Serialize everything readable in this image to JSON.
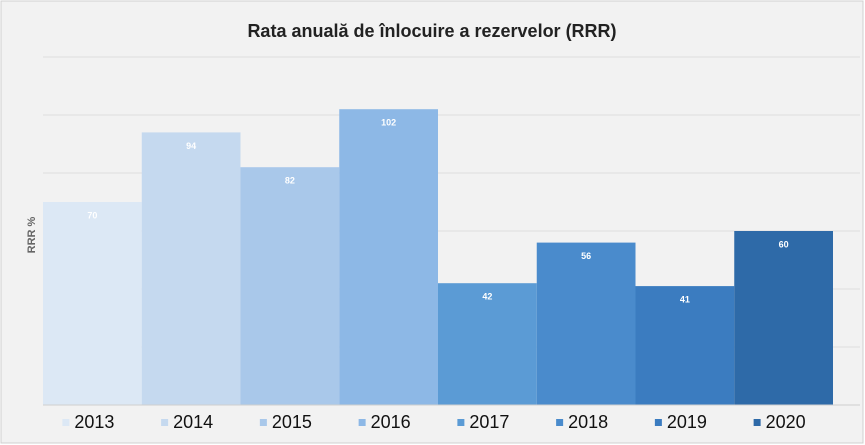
{
  "chart_data": {
    "type": "bar",
    "title": "Rata anuală de înlocuire a rezervelor (RRR)",
    "y_label": "RRR %",
    "series": [
      {
        "name": "2013",
        "color": "#dce8f5",
        "values": [
          70
        ]
      },
      {
        "name": "2014",
        "color": "#c5d9ef",
        "values": [
          94
        ]
      },
      {
        "name": "2015",
        "color": "#a9c8ea",
        "values": [
          82
        ]
      },
      {
        "name": "2016",
        "color": "#8db8e6",
        "values": [
          102
        ]
      },
      {
        "name": "2017",
        "color": "#5b9bd5",
        "values": [
          42
        ]
      },
      {
        "name": "2018",
        "color": "#4a8bcc",
        "values": [
          56
        ]
      },
      {
        "name": "2019",
        "color": "#3b7cc0",
        "values": [
          41
        ]
      },
      {
        "name": "2020",
        "color": "#2e6aa8",
        "values": [
          60
        ]
      }
    ],
    "ylim": [
      0,
      120
    ],
    "yticks": [
      0,
      20,
      40,
      60,
      80,
      100,
      120
    ],
    "show_tick_labels": false,
    "grid": true,
    "legend": "bottom"
  }
}
